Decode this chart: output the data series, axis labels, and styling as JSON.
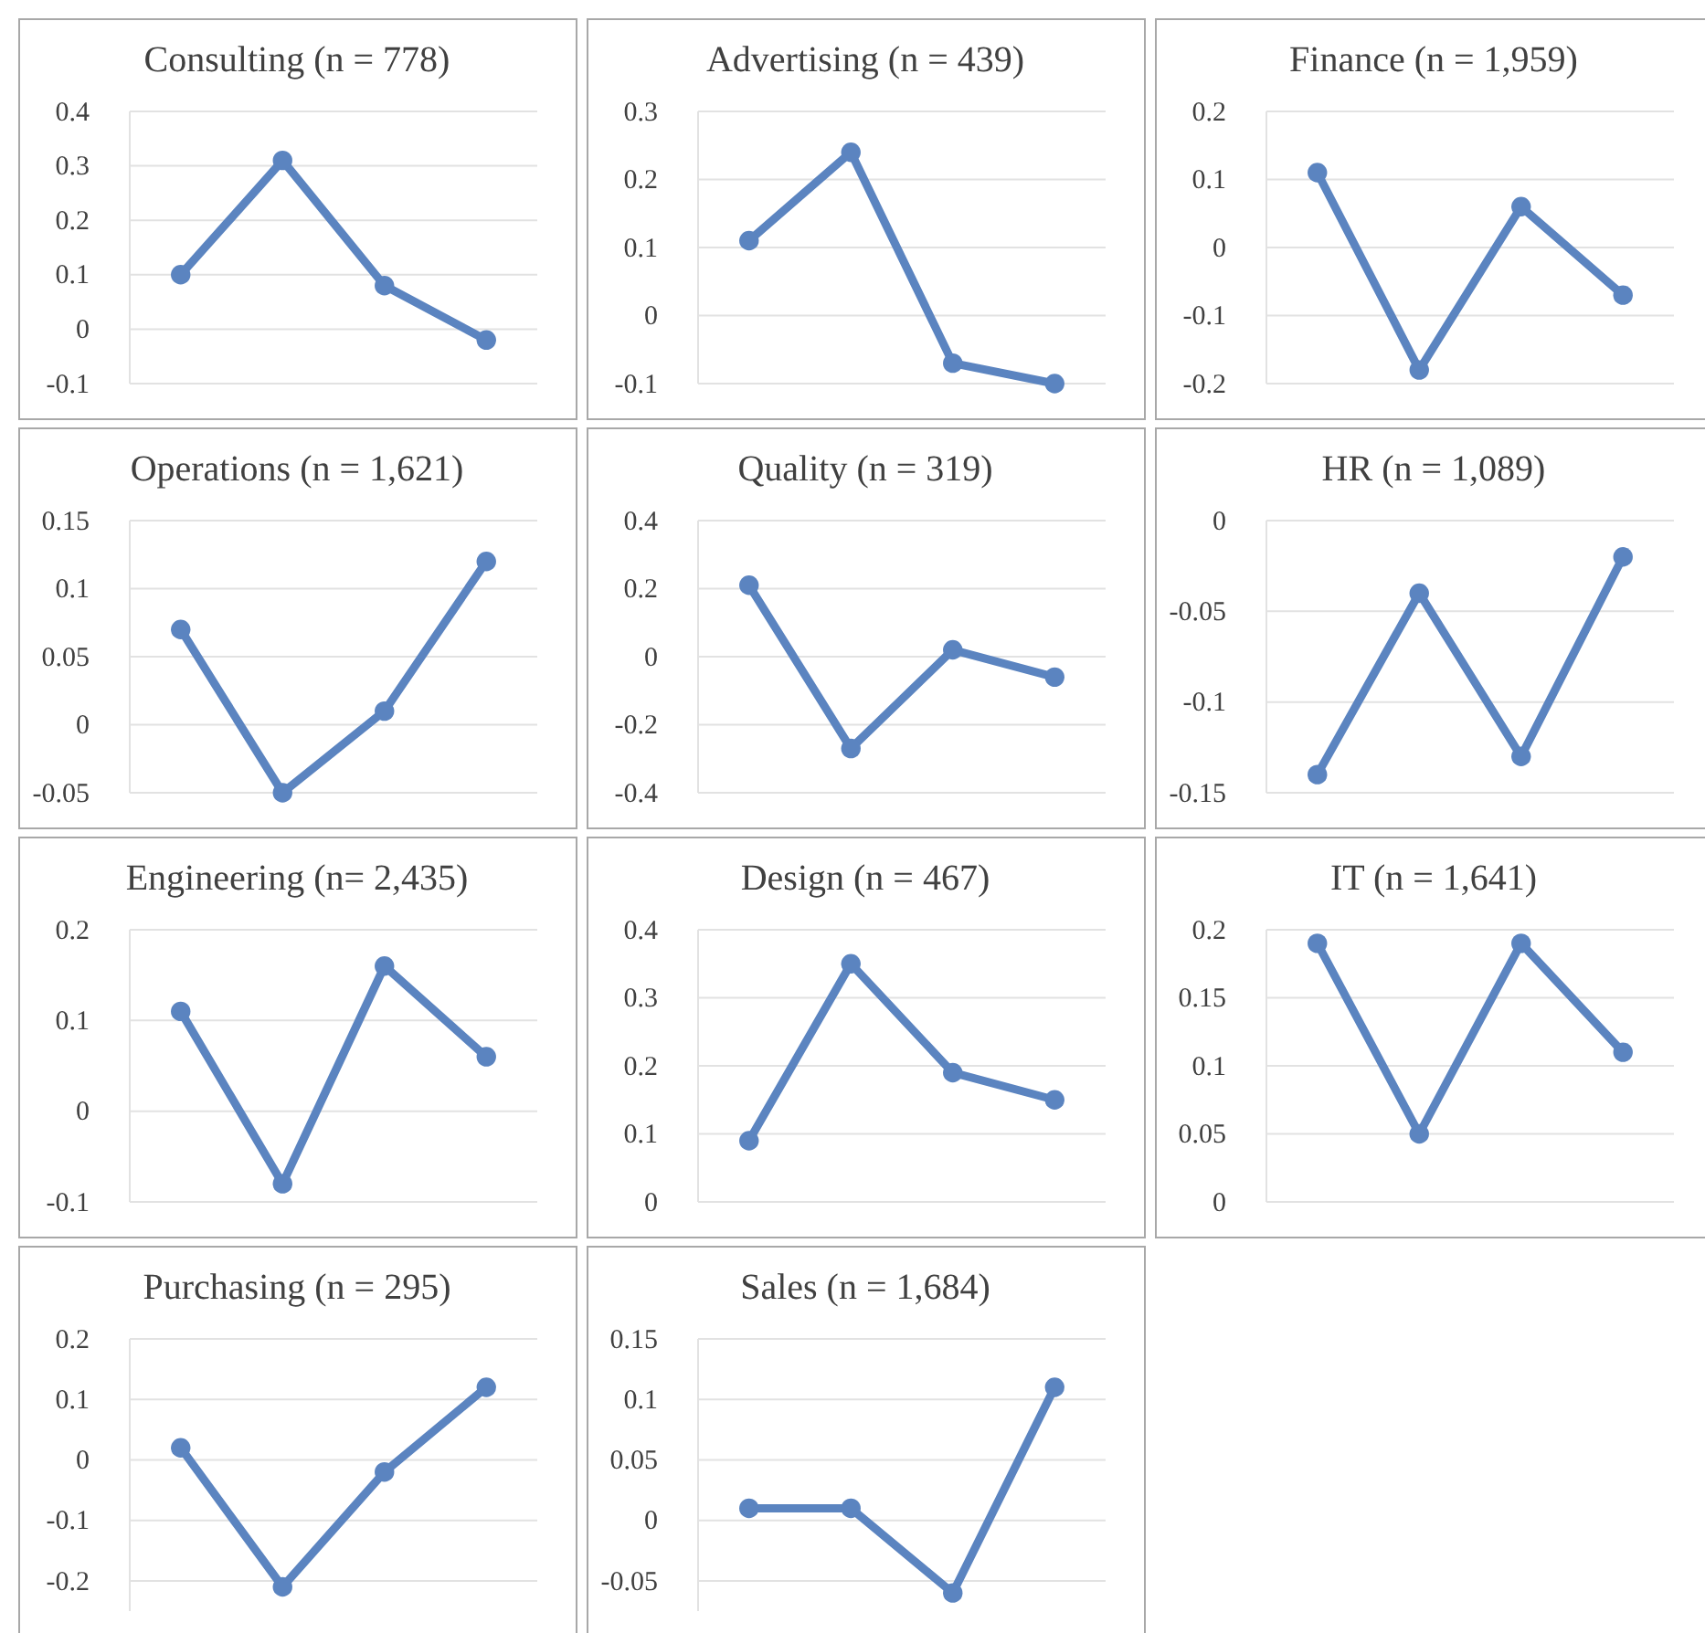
{
  "chart_data": [
    {
      "type": "line",
      "title": "Consulting (n = 778)",
      "categories": [
        null,
        null,
        null,
        null
      ],
      "series": [
        {
          "color": "#5b84c0",
          "values": [
            0.1,
            0.31,
            0.08,
            -0.02
          ]
        }
      ],
      "ylim": [
        -0.1,
        0.4
      ],
      "yticks": [
        -0.1,
        0,
        0.1,
        0.2,
        0.3,
        0.4
      ],
      "grid": "y",
      "marker": "circle",
      "tick_labels": "y"
    },
    {
      "type": "line",
      "title": "Advertising (n = 439)",
      "categories": [
        null,
        null,
        null,
        null
      ],
      "series": [
        {
          "color": "#5b84c0",
          "values": [
            0.11,
            0.24,
            -0.07,
            -0.1
          ]
        }
      ],
      "ylim": [
        -0.1,
        0.3
      ],
      "yticks": [
        -0.1,
        0,
        0.1,
        0.2,
        0.3
      ],
      "grid": "y",
      "marker": "circle",
      "tick_labels": "y"
    },
    {
      "type": "line",
      "title": "Finance (n = 1,959)",
      "categories": [
        null,
        null,
        null,
        null
      ],
      "series": [
        {
          "color": "#5b84c0",
          "values": [
            0.11,
            -0.18,
            0.06,
            -0.07
          ]
        }
      ],
      "ylim": [
        -0.2,
        0.2
      ],
      "yticks": [
        -0.2,
        -0.1,
        0,
        0.1,
        0.2
      ],
      "grid": "y",
      "marker": "circle",
      "tick_labels": "y"
    },
    {
      "type": "line",
      "title": "Operations (n = 1,621)",
      "categories": [
        null,
        null,
        null,
        null
      ],
      "series": [
        {
          "color": "#5b84c0",
          "values": [
            0.07,
            -0.05,
            0.01,
            0.12
          ]
        }
      ],
      "ylim": [
        -0.05,
        0.15
      ],
      "yticks": [
        -0.05,
        0,
        0.05,
        0.1,
        0.15
      ],
      "grid": "y",
      "marker": "circle",
      "tick_labels": "y"
    },
    {
      "type": "line",
      "title": "Quality (n = 319)",
      "categories": [
        null,
        null,
        null,
        null
      ],
      "series": [
        {
          "color": "#5b84c0",
          "values": [
            0.21,
            -0.27,
            0.02,
            -0.06
          ]
        }
      ],
      "ylim": [
        -0.4,
        0.4
      ],
      "yticks": [
        -0.4,
        -0.2,
        0,
        0.2,
        0.4
      ],
      "grid": "y",
      "marker": "circle",
      "tick_labels": "y"
    },
    {
      "type": "line",
      "title": "HR (n = 1,089)",
      "categories": [
        null,
        null,
        null,
        null
      ],
      "series": [
        {
          "color": "#5b84c0",
          "values": [
            -0.14,
            -0.04,
            -0.13,
            -0.02
          ]
        }
      ],
      "ylim": [
        -0.15,
        0
      ],
      "yticks": [
        -0.15,
        -0.1,
        -0.05,
        0
      ],
      "grid": "y",
      "marker": "circle",
      "tick_labels": "y"
    },
    {
      "type": "line",
      "title": "Engineering (n= 2,435)",
      "categories": [
        null,
        null,
        null,
        null
      ],
      "series": [
        {
          "color": "#5b84c0",
          "values": [
            0.11,
            -0.08,
            0.16,
            0.06
          ]
        }
      ],
      "ylim": [
        -0.1,
        0.2
      ],
      "yticks": [
        -0.1,
        0,
        0.1,
        0.2
      ],
      "grid": "y",
      "marker": "circle",
      "tick_labels": "y"
    },
    {
      "type": "line",
      "title": "Design (n = 467)",
      "categories": [
        null,
        null,
        null,
        null
      ],
      "series": [
        {
          "color": "#5b84c0",
          "values": [
            0.09,
            0.35,
            0.19,
            0.15
          ]
        }
      ],
      "ylim": [
        0,
        0.4
      ],
      "yticks": [
        0,
        0.1,
        0.2,
        0.3,
        0.4
      ],
      "grid": "y",
      "marker": "circle",
      "tick_labels": "y"
    },
    {
      "type": "line",
      "title": "IT (n = 1,641)",
      "categories": [
        null,
        null,
        null,
        null
      ],
      "series": [
        {
          "color": "#5b84c0",
          "values": [
            0.19,
            0.05,
            0.19,
            0.11
          ]
        }
      ],
      "ylim": [
        0,
        0.2
      ],
      "yticks": [
        0,
        0.05,
        0.1,
        0.15,
        0.2
      ],
      "grid": "y",
      "marker": "circle",
      "tick_labels": "y"
    },
    {
      "type": "line",
      "title": "Purchasing (n = 295)",
      "categories": [
        null,
        null,
        null,
        null
      ],
      "series": [
        {
          "color": "#5b84c0",
          "values": [
            0.02,
            -0.21,
            -0.02,
            0.12
          ]
        }
      ],
      "ylim": [
        -0.25,
        0.2
      ],
      "yticks": [
        -0.2,
        -0.1,
        0,
        0.1,
        0.2
      ],
      "grid": "y",
      "marker": "circle",
      "tick_labels": "y"
    },
    {
      "type": "line",
      "title": "Sales (n = 1,684)",
      "categories": [
        null,
        null,
        null,
        null
      ],
      "series": [
        {
          "color": "#5b84c0",
          "values": [
            0.01,
            0.01,
            -0.06,
            0.11
          ]
        }
      ],
      "ylim": [
        -0.075,
        0.15
      ],
      "yticks": [
        -0.05,
        0,
        0.05,
        0.1,
        0.15
      ],
      "grid": "y",
      "marker": "circle",
      "tick_labels": "y"
    }
  ]
}
